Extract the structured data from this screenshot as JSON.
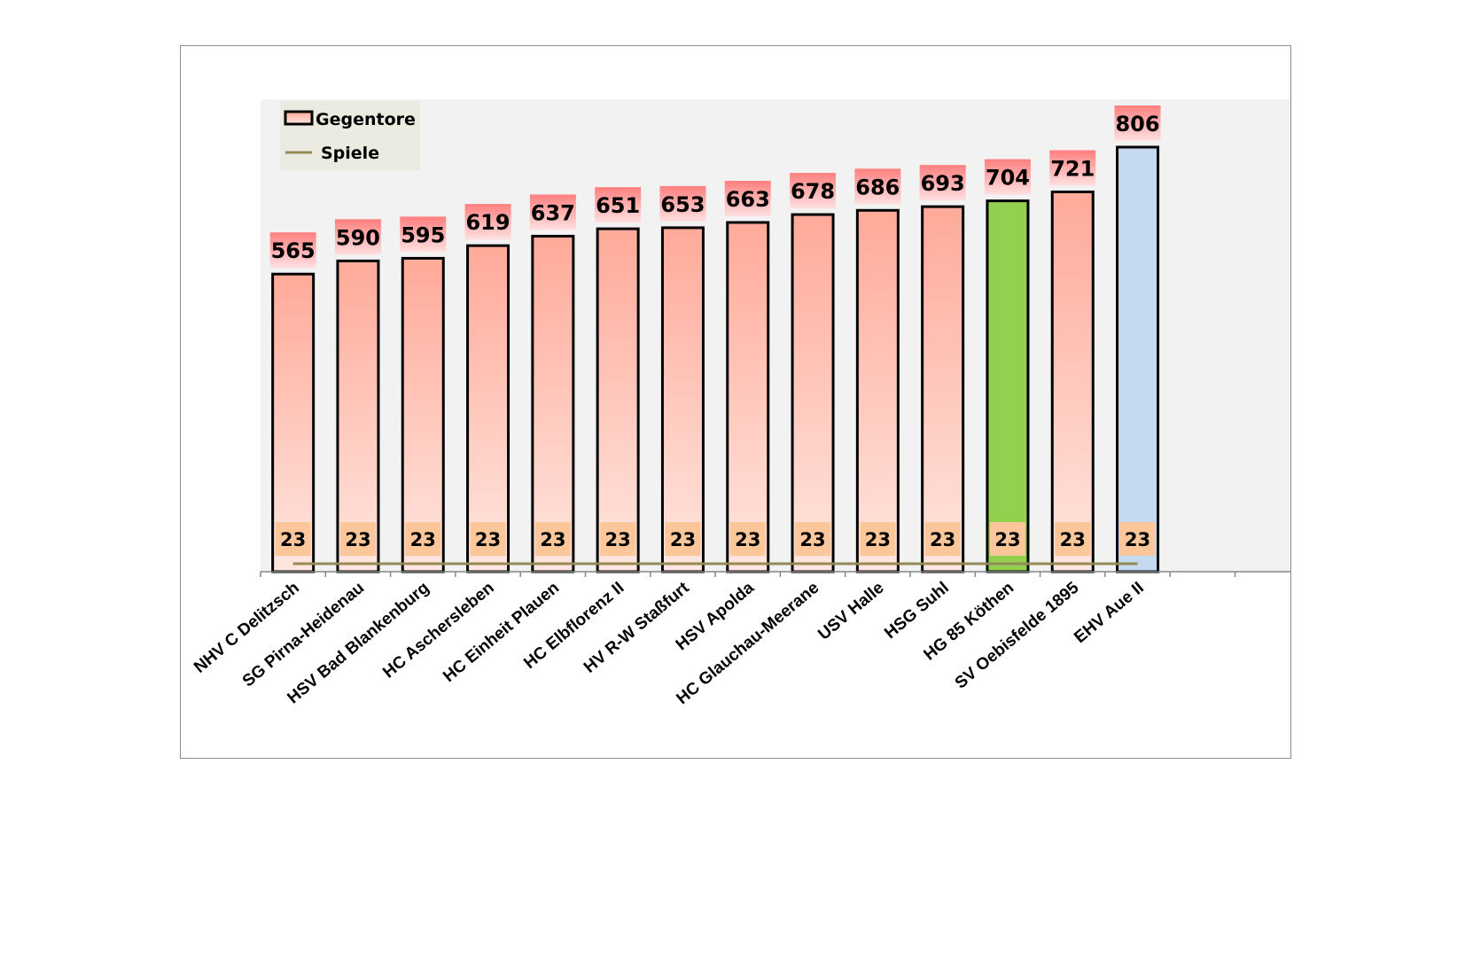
{
  "chart_data": {
    "type": "bar",
    "categories": [
      "NHV C Delitzsch",
      "SG Pirna-Heidenau",
      "HSV Bad Blankenburg",
      "HC Aschersleben",
      "HC Einheit Plauen",
      "HC Elbflorenz II",
      "HV R-W Staßfurt",
      "HSV Apolda",
      "HC Glauchau-Meerane",
      "USV Halle",
      "HSG Suhl",
      "HG 85 Köthen",
      "SV Oebisfelde 1895",
      "EHV Aue II"
    ],
    "series": [
      {
        "name": "Gegentore",
        "type": "bar",
        "values": [
          565,
          590,
          595,
          619,
          637,
          651,
          653,
          663,
          678,
          686,
          693,
          704,
          721,
          806
        ]
      },
      {
        "name": "Spiele",
        "type": "line",
        "values": [
          23,
          23,
          23,
          23,
          23,
          23,
          23,
          23,
          23,
          23,
          23,
          23,
          23,
          23
        ]
      }
    ],
    "highlight_colors": {
      "HG 85 Köthen": "#92d050",
      "EHV Aue II": "#c5d9f1"
    },
    "colors": {
      "bar_top": "#ffaa99",
      "bar_bottom": "#ffe6e0",
      "label_top": "#ff7f7f",
      "label_bottom": "#ffe0e0",
      "games_label_bg": "#fbc79a",
      "line": "#948a54",
      "plot_bg": "#f2f2f2",
      "legend_bg": "#ebebe1"
    },
    "legend_position": "top-left",
    "grid": false
  }
}
